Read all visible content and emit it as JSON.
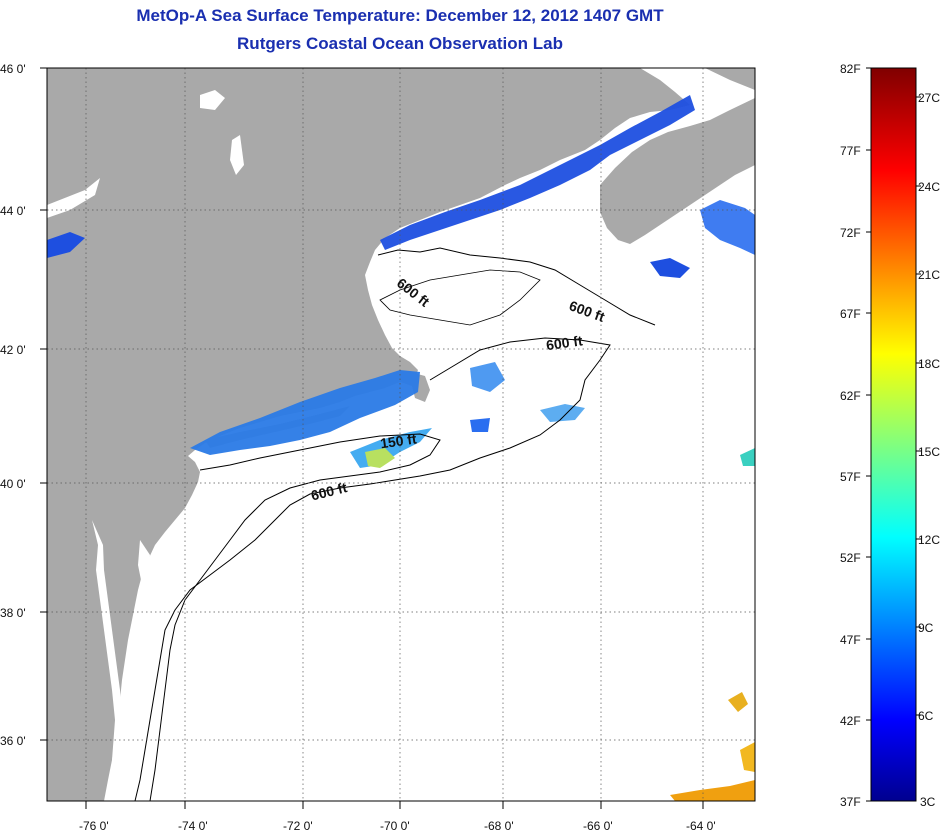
{
  "title": {
    "line1": "MetOp-A Sea Surface Temperature:  December 12, 2012 1407 GMT",
    "line2": "Rutgers Coastal Ocean Observation Lab"
  },
  "map": {
    "lon_range": [
      -77,
      -62.6
    ],
    "lat_range": [
      35,
      46
    ],
    "x_ticks": [
      {
        "lon": -76,
        "label": "-76 0'"
      },
      {
        "lon": -74,
        "label": "-74 0'"
      },
      {
        "lon": -72,
        "label": "-72 0'"
      },
      {
        "lon": -70,
        "label": "-70 0'"
      },
      {
        "lon": -68,
        "label": "-68 0'"
      },
      {
        "lon": -66,
        "label": "-66 0'"
      },
      {
        "lon": -64,
        "label": "-64 0'"
      }
    ],
    "y_ticks": [
      {
        "lat": 46,
        "label": "46 0'"
      },
      {
        "lat": 44,
        "label": "44 0'"
      },
      {
        "lat": 42,
        "label": "42 0'"
      },
      {
        "lat": 40,
        "label": "40 0'"
      },
      {
        "lat": 38,
        "label": "38 0'"
      },
      {
        "lat": 36,
        "label": "36 0'"
      }
    ],
    "contour_labels": [
      {
        "text": "600 ft"
      },
      {
        "text": "600 ft"
      },
      {
        "text": "600 ft"
      },
      {
        "text": "150 ft"
      },
      {
        "text": "600 ft"
      }
    ],
    "colors": {
      "land": "#a9a9a9",
      "ocean": "#ffffff",
      "sst_cold": "#1e4fe0",
      "sst_mid": "#2aa0e8",
      "sst_warm": "#c9e84a",
      "sst_hot": "#f0a010"
    }
  },
  "colorbar": {
    "fahrenheit_labels": [
      "82F",
      "77F",
      "72F",
      "67F",
      "62F",
      "57F",
      "52F",
      "47F",
      "42F",
      "37F"
    ],
    "celsius_labels": [
      "27C",
      "24C",
      "21C",
      "18C",
      "15C",
      "12C",
      "9C",
      "6C",
      "3C"
    ],
    "range_F": [
      37,
      82
    ],
    "range_C": [
      3,
      27.8
    ]
  }
}
